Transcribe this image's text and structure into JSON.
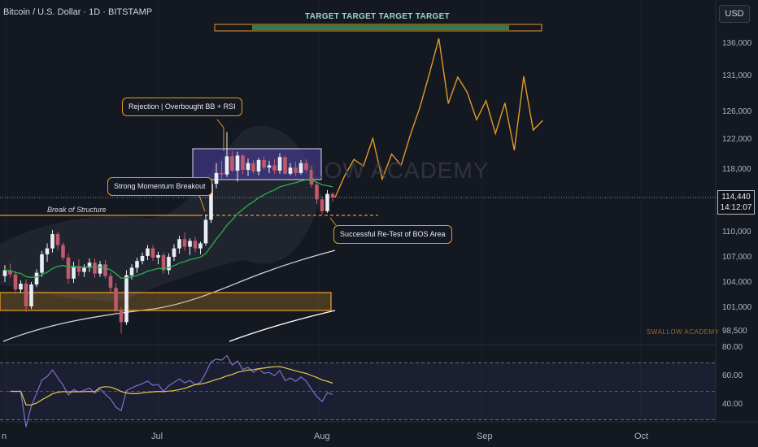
{
  "header": {
    "symbol_title": "Bitcoin / U.S. Dollar · 1D · BITSTAMP",
    "currency_button": "USD"
  },
  "last_price": {
    "price": "114,440",
    "countdown": "14:12:07"
  },
  "price_axis_labels": [
    "136,000",
    "131,000",
    "126,000",
    "122,000",
    "118,000",
    "110,000",
    "107,000",
    "104,000",
    "101,000",
    "98,500"
  ],
  "rsi_axis_labels": [
    "80.00",
    "60.00",
    "40.00"
  ],
  "time_axis_labels": [
    "n",
    "Jul",
    "Aug",
    "Sep",
    "Oct"
  ],
  "annotations": {
    "target_label": "TARGET  TARGET  TARGET  TARGET",
    "rejection": "Rejection | Overbought BB + RSI",
    "momentum": "Strong Momentum Breakout",
    "bos": "Break of Structure",
    "retest": "Successful Re-Test of BOS Area"
  },
  "watermark": {
    "main": "LOW ACADEMY",
    "small": "SWALLOW ACADEMY"
  },
  "colors": {
    "background": "#141821",
    "bull_candle": "#e9eef6",
    "bear_candle": "#c0596b",
    "accent_orange": "#e29a26",
    "ema_green": "#2aaf49",
    "rsi_line": "#7d72c9",
    "rsi_ma": "#e6c84a",
    "target_fill": "#2e7d4f"
  },
  "chart_data": {
    "type": "candlestick",
    "symbol": "BTCUSD",
    "timeframe": "1D",
    "current_price": 114440,
    "price_scale": [
      98500,
      101000,
      104000,
      107000,
      110000,
      118000,
      122000,
      126000,
      131000,
      136000
    ],
    "rsi_levels": [
      80,
      60,
      40
    ],
    "candles": [
      {
        "o": 104800,
        "h": 106100,
        "l": 104100,
        "c": 105500
      },
      {
        "o": 105500,
        "h": 106300,
        "l": 104600,
        "c": 105000
      },
      {
        "o": 105000,
        "h": 105400,
        "l": 102700,
        "c": 103200
      },
      {
        "o": 103200,
        "h": 104300,
        "l": 102800,
        "c": 103900
      },
      {
        "o": 103900,
        "h": 104400,
        "l": 100600,
        "c": 101200
      },
      {
        "o": 101200,
        "h": 104100,
        "l": 100900,
        "c": 103800
      },
      {
        "o": 103800,
        "h": 105600,
        "l": 103500,
        "c": 105200
      },
      {
        "o": 105200,
        "h": 107800,
        "l": 104700,
        "c": 107400
      },
      {
        "o": 107400,
        "h": 108700,
        "l": 106500,
        "c": 108100
      },
      {
        "o": 108100,
        "h": 110300,
        "l": 107600,
        "c": 109800
      },
      {
        "o": 109800,
        "h": 110100,
        "l": 107900,
        "c": 108500
      },
      {
        "o": 108500,
        "h": 108800,
        "l": 106700,
        "c": 107000
      },
      {
        "o": 107000,
        "h": 107500,
        "l": 103900,
        "c": 104500
      },
      {
        "o": 104500,
        "h": 106500,
        "l": 104000,
        "c": 106000
      },
      {
        "o": 106000,
        "h": 106800,
        "l": 104800,
        "c": 105300
      },
      {
        "o": 105300,
        "h": 106200,
        "l": 104700,
        "c": 105800
      },
      {
        "o": 105800,
        "h": 106900,
        "l": 105300,
        "c": 106400
      },
      {
        "o": 106400,
        "h": 106900,
        "l": 104600,
        "c": 105100
      },
      {
        "o": 105100,
        "h": 106600,
        "l": 104700,
        "c": 106200
      },
      {
        "o": 106200,
        "h": 106700,
        "l": 104500,
        "c": 104800
      },
      {
        "o": 104800,
        "h": 105200,
        "l": 102900,
        "c": 103400
      },
      {
        "o": 103400,
        "h": 104000,
        "l": 100300,
        "c": 100800
      },
      {
        "o": 100800,
        "h": 101100,
        "l": 98300,
        "c": 99500
      },
      {
        "o": 99500,
        "h": 105500,
        "l": 99200,
        "c": 104900
      },
      {
        "o": 104900,
        "h": 106200,
        "l": 104400,
        "c": 105800
      },
      {
        "o": 105800,
        "h": 107000,
        "l": 105200,
        "c": 106600
      },
      {
        "o": 106600,
        "h": 107600,
        "l": 106200,
        "c": 107200
      },
      {
        "o": 107200,
        "h": 108500,
        "l": 106700,
        "c": 108100
      },
      {
        "o": 108100,
        "h": 108500,
        "l": 106600,
        "c": 107000
      },
      {
        "o": 107000,
        "h": 107700,
        "l": 106200,
        "c": 107300
      },
      {
        "o": 107300,
        "h": 107600,
        "l": 105100,
        "c": 105500
      },
      {
        "o": 105500,
        "h": 107500,
        "l": 105000,
        "c": 107100
      },
      {
        "o": 107100,
        "h": 108600,
        "l": 106600,
        "c": 108100
      },
      {
        "o": 108100,
        "h": 109600,
        "l": 107500,
        "c": 109200
      },
      {
        "o": 109200,
        "h": 110000,
        "l": 107800,
        "c": 108300
      },
      {
        "o": 108300,
        "h": 109300,
        "l": 107300,
        "c": 109000
      },
      {
        "o": 109000,
        "h": 109500,
        "l": 107600,
        "c": 108100
      },
      {
        "o": 108100,
        "h": 108900,
        "l": 107400,
        "c": 108700
      },
      {
        "o": 108700,
        "h": 112300,
        "l": 108400,
        "c": 111600
      },
      {
        "o": 111600,
        "h": 116700,
        "l": 111200,
        "c": 116200
      },
      {
        "o": 116200,
        "h": 118900,
        "l": 115600,
        "c": 117600
      },
      {
        "o": 117600,
        "h": 119200,
        "l": 116900,
        "c": 117400
      },
      {
        "o": 117400,
        "h": 123100,
        "l": 117100,
        "c": 119800
      },
      {
        "o": 119800,
        "h": 120500,
        "l": 117700,
        "c": 117900
      },
      {
        "o": 117900,
        "h": 120400,
        "l": 116500,
        "c": 119900
      },
      {
        "o": 119900,
        "h": 120100,
        "l": 117400,
        "c": 118000
      },
      {
        "o": 118000,
        "h": 119500,
        "l": 117200,
        "c": 118900
      },
      {
        "o": 118900,
        "h": 119300,
        "l": 117500,
        "c": 117800
      },
      {
        "o": 117800,
        "h": 119600,
        "l": 117300,
        "c": 119300
      },
      {
        "o": 119300,
        "h": 119800,
        "l": 118000,
        "c": 118300
      },
      {
        "o": 118300,
        "h": 119200,
        "l": 117600,
        "c": 118600
      },
      {
        "o": 118600,
        "h": 119400,
        "l": 117500,
        "c": 117900
      },
      {
        "o": 117900,
        "h": 120200,
        "l": 117500,
        "c": 119700
      },
      {
        "o": 119700,
        "h": 119900,
        "l": 117400,
        "c": 117500
      },
      {
        "o": 117500,
        "h": 118900,
        "l": 117300,
        "c": 118300
      },
      {
        "o": 118300,
        "h": 119100,
        "l": 117200,
        "c": 117600
      },
      {
        "o": 117600,
        "h": 119300,
        "l": 117400,
        "c": 118900
      },
      {
        "o": 118900,
        "h": 119400,
        "l": 117600,
        "c": 118000
      },
      {
        "o": 118000,
        "h": 118600,
        "l": 115700,
        "c": 116100
      },
      {
        "o": 116100,
        "h": 116400,
        "l": 113600,
        "c": 114200
      },
      {
        "o": 114200,
        "h": 114600,
        "l": 112300,
        "c": 112700
      },
      {
        "o": 112700,
        "h": 115400,
        "l": 112500,
        "c": 114900
      },
      {
        "o": 114900,
        "h": 115100,
        "l": 113900,
        "c": 114440
      }
    ],
    "projection": [
      114440,
      117200,
      119400,
      118500,
      122200,
      116800,
      120100,
      118600,
      122800,
      126700,
      131400,
      136700,
      127200,
      130900,
      128800,
      124900,
      127600,
      122900,
      127300,
      120600,
      131000,
      123400,
      124800
    ]
  }
}
